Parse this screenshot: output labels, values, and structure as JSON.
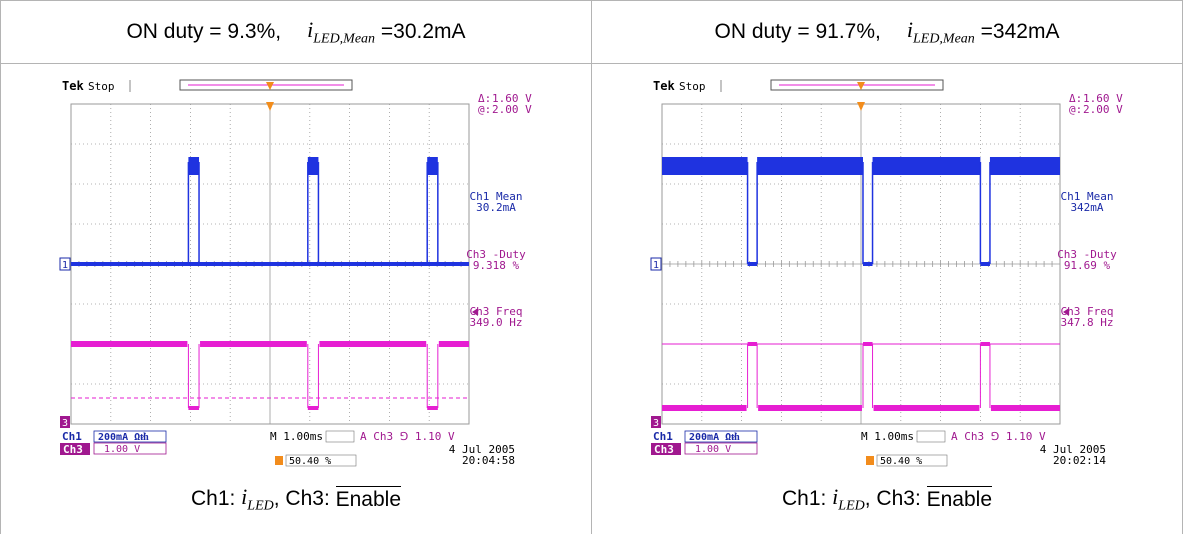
{
  "colors": {
    "ch1": "#1f33e0",
    "ch3": "#e61ed2",
    "grid": "#9a9a9a",
    "trigger": "#f28c1c",
    "text_blue": "#1a2aa8",
    "text_mag": "#a0188f",
    "border": "#b4b4b4"
  },
  "panels": [
    {
      "header": {
        "prefix": "ON duty = 9.3%,",
        "sym": "i",
        "sub": "LED,Mean",
        "suffix": "=30.2mA"
      },
      "caption": {
        "a": "Ch1:",
        "sym": "i",
        "sub": "LED",
        "b": ", Ch3:",
        "enable": "Enable"
      },
      "scope": {
        "brand": "Tek",
        "status": "Stop",
        "cursor": {
          "delta_label": "Δ:",
          "delta_value": "1.60 V",
          "at_label": "@:",
          "at_value": "2.00 V"
        },
        "meas": [
          {
            "name": "Ch1 Mean",
            "value": "30.2mA"
          },
          {
            "name": "Ch3 -Duty",
            "value": "9.318 %"
          },
          {
            "name": "Ch3 Freq",
            "value": "349.0 Hz"
          }
        ],
        "ch1_marker": "1",
        "ch3_marker": "3",
        "ch1_scale_label": "Ch1",
        "ch1_scale": "200mA Ωᵺ",
        "ch3_scale_label": "Ch3",
        "ch3_scale": "1.00 V",
        "timebase": "M 1.00ms",
        "trigger": "A  Ch3 ⅁  1.10 V",
        "trigger_pos": "50.40 %",
        "date": "4 Jul  2005",
        "time": "20:04:58"
      },
      "chart_data": {
        "type": "line",
        "x_unit": "ms",
        "x_per_div": 1.0,
        "divisions_x": 10,
        "period_ms": 2.865,
        "duty_percent": 9.318,
        "freq_hz": 349.0,
        "pulse_starts_ms": [
          3.0,
          6.0,
          9.0
        ],
        "ch1_mean_mA": 30.2,
        "ch1_low_div": 4.0,
        "ch1_high_div": 6.55,
        "ch3_on_div": 0.4,
        "ch3_off_div": 2.0
      }
    },
    {
      "header": {
        "prefix": "ON duty = 91.7%,",
        "sym": "i",
        "sub": "LED,Mean",
        "suffix": "=342mA"
      },
      "caption": {
        "a": "Ch1:",
        "sym": "i",
        "sub": "LED",
        "b": ", Ch3:",
        "enable": "Enable"
      },
      "scope": {
        "brand": "Tek",
        "status": "Stop",
        "cursor": {
          "delta_label": "Δ:",
          "delta_value": "1.60 V",
          "at_label": "@:",
          "at_value": "2.00 V"
        },
        "meas": [
          {
            "name": "Ch1 Mean",
            "value": "342mA"
          },
          {
            "name": "Ch3 -Duty",
            "value": "91.69 %"
          },
          {
            "name": "Ch3 Freq",
            "value": "347.8 Hz"
          }
        ],
        "ch1_marker": "1",
        "ch3_marker": "3",
        "ch1_scale_label": "Ch1",
        "ch1_scale": "200mA Ωᵺ",
        "ch3_scale_label": "Ch3",
        "ch3_scale": "1.00 V",
        "timebase": "M 1.00ms",
        "trigger": "A  Ch3 ⅁  1.10 V",
        "trigger_pos": "50.40 %",
        "date": "4 Jul  2005",
        "time": "20:02:14"
      },
      "chart_data": {
        "type": "line",
        "x_unit": "ms",
        "x_per_div": 1.0,
        "divisions_x": 10,
        "period_ms": 2.875,
        "duty_percent": 91.69,
        "freq_hz": 347.8,
        "pulse_starts_ms": [
          2.15,
          5.05,
          8.0
        ],
        "notch_width_ms": 0.24,
        "ch1_mean_mA": 342,
        "ch1_low_div": 4.0,
        "ch1_high_div": 6.55,
        "ch3_on_div": 0.4,
        "ch3_off_div": 2.0
      }
    }
  ]
}
